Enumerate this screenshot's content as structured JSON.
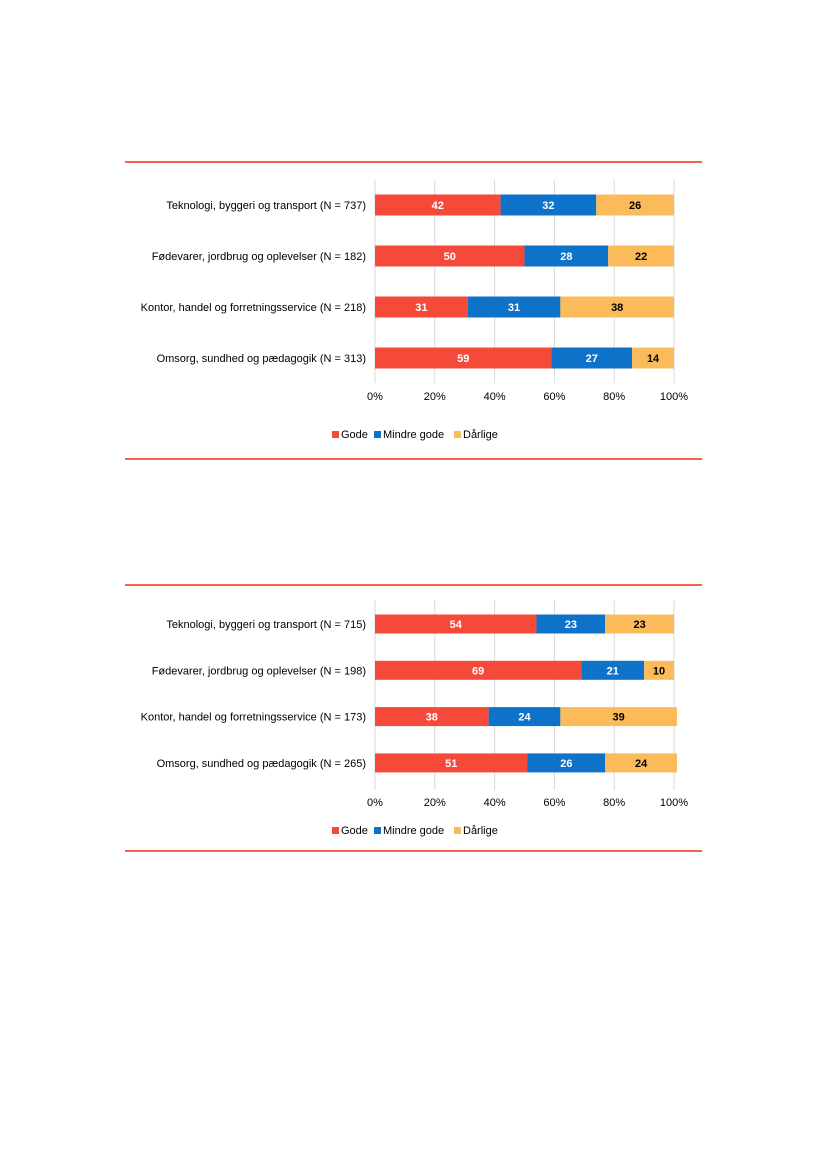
{
  "colors": {
    "gode": "#f5493a",
    "mindre_gode": "#0f72c9",
    "darlige": "#fbbb5a",
    "rule": "#f4634a"
  },
  "chart_data": [
    {
      "type": "bar",
      "orientation": "horizontal",
      "stacked": true,
      "categories": [
        "Teknologi, byggeri og transport (N = 737)",
        "Fødevarer, jordbrug og oplevelser (N = 182)",
        "Kontor, handel og forretningsservice (N = 218)",
        "Omsorg, sundhed og pædagogik (N = 313)"
      ],
      "series": [
        {
          "name": "Gode",
          "values": [
            42,
            50,
            31,
            59
          ]
        },
        {
          "name": "Mindre gode",
          "values": [
            32,
            28,
            31,
            27
          ]
        },
        {
          "name": "Dårlige",
          "values": [
            26,
            22,
            38,
            14
          ]
        }
      ],
      "xlim": [
        0,
        100
      ],
      "xticks": [
        "0%",
        "20%",
        "40%",
        "60%",
        "80%",
        "100%"
      ],
      "grid": "vertical",
      "legend": "bottom"
    },
    {
      "type": "bar",
      "orientation": "horizontal",
      "stacked": true,
      "categories": [
        "Teknologi, byggeri og transport (N = 715)",
        "Fødevarer, jordbrug og oplevelser (N = 198)",
        "Kontor, handel og forretningsservice (N = 173)",
        "Omsorg, sundhed og pædagogik (N = 265)"
      ],
      "series": [
        {
          "name": "Gode",
          "values": [
            54,
            69,
            38,
            51
          ]
        },
        {
          "name": "Mindre gode",
          "values": [
            23,
            21,
            24,
            26
          ]
        },
        {
          "name": "Dårlige",
          "values": [
            23,
            10,
            39,
            24
          ]
        }
      ],
      "xlim": [
        0,
        100
      ],
      "xticks": [
        "0%",
        "20%",
        "40%",
        "60%",
        "80%",
        "100%"
      ],
      "grid": "vertical",
      "legend": "bottom"
    }
  ]
}
